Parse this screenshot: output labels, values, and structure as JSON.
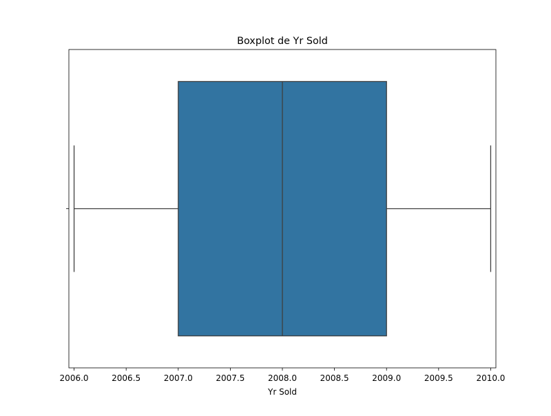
{
  "chart_data": {
    "type": "boxplot",
    "title": "Boxplot de Yr Sold",
    "xlabel": "Yr Sold",
    "ylabel": "",
    "orientation": "horizontal",
    "xlim": [
      2005.95,
      2010.05
    ],
    "xticks": [
      2006.0,
      2006.5,
      2007.0,
      2007.5,
      2008.0,
      2008.5,
      2009.0,
      2009.5,
      2010.0
    ],
    "xtick_labels": [
      "2006.0",
      "2006.5",
      "2007.0",
      "2007.5",
      "2008.0",
      "2008.5",
      "2009.0",
      "2009.5",
      "2010.0"
    ],
    "grid": false,
    "box": {
      "whisker_low": 2006.0,
      "q1": 2007.0,
      "median": 2008.0,
      "q3": 2009.0,
      "whisker_high": 2010.0
    },
    "colors": {
      "box_fill": "#3274a1",
      "lines": "#3f3f3f",
      "axes": "#000000"
    }
  }
}
